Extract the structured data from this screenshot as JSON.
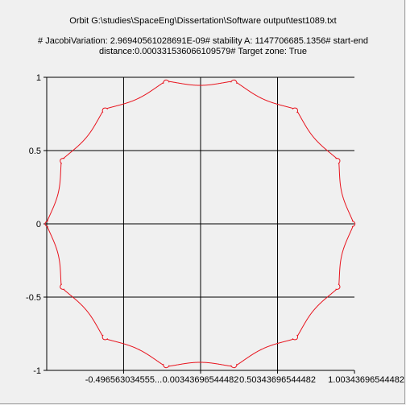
{
  "chart_data": {
    "type": "line",
    "title": "Orbit G:\\studies\\SpaceEng\\Dissertation\\Software output\\test1089.txt",
    "subtitle": "# JacobiVariation: 2.96940561028691E-09# stability A: 1147706685.1356# start-end distance:0.000331536066109579# Target zone: True",
    "xlabel": "",
    "ylabel": "",
    "xlim": [
      -0.996,
      1.003
    ],
    "ylim": [
      -1,
      1
    ],
    "x_ticks": [
      {
        "value": -0.4965630345,
        "label": "-0.496563034555..."
      },
      {
        "value": 0.0034369654,
        "label": "0.00343696544482"
      },
      {
        "value": 0.5034369654,
        "label": "0.50343696544482"
      },
      {
        "value": 1.0034369654,
        "label": "1.00343696544482"
      }
    ],
    "y_ticks": [
      {
        "value": 1,
        "label": "1"
      },
      {
        "value": 0.5,
        "label": "0.5"
      },
      {
        "value": 0,
        "label": "0"
      },
      {
        "value": -0.5,
        "label": "-0.5"
      },
      {
        "value": -1,
        "label": "-1"
      }
    ],
    "grid": true,
    "legend": "none",
    "series_color": "#e8141e",
    "orbit": {
      "lobes": 14,
      "base_radius": 1.0,
      "loop_radius": 0.0075,
      "revolutions": 1
    }
  }
}
